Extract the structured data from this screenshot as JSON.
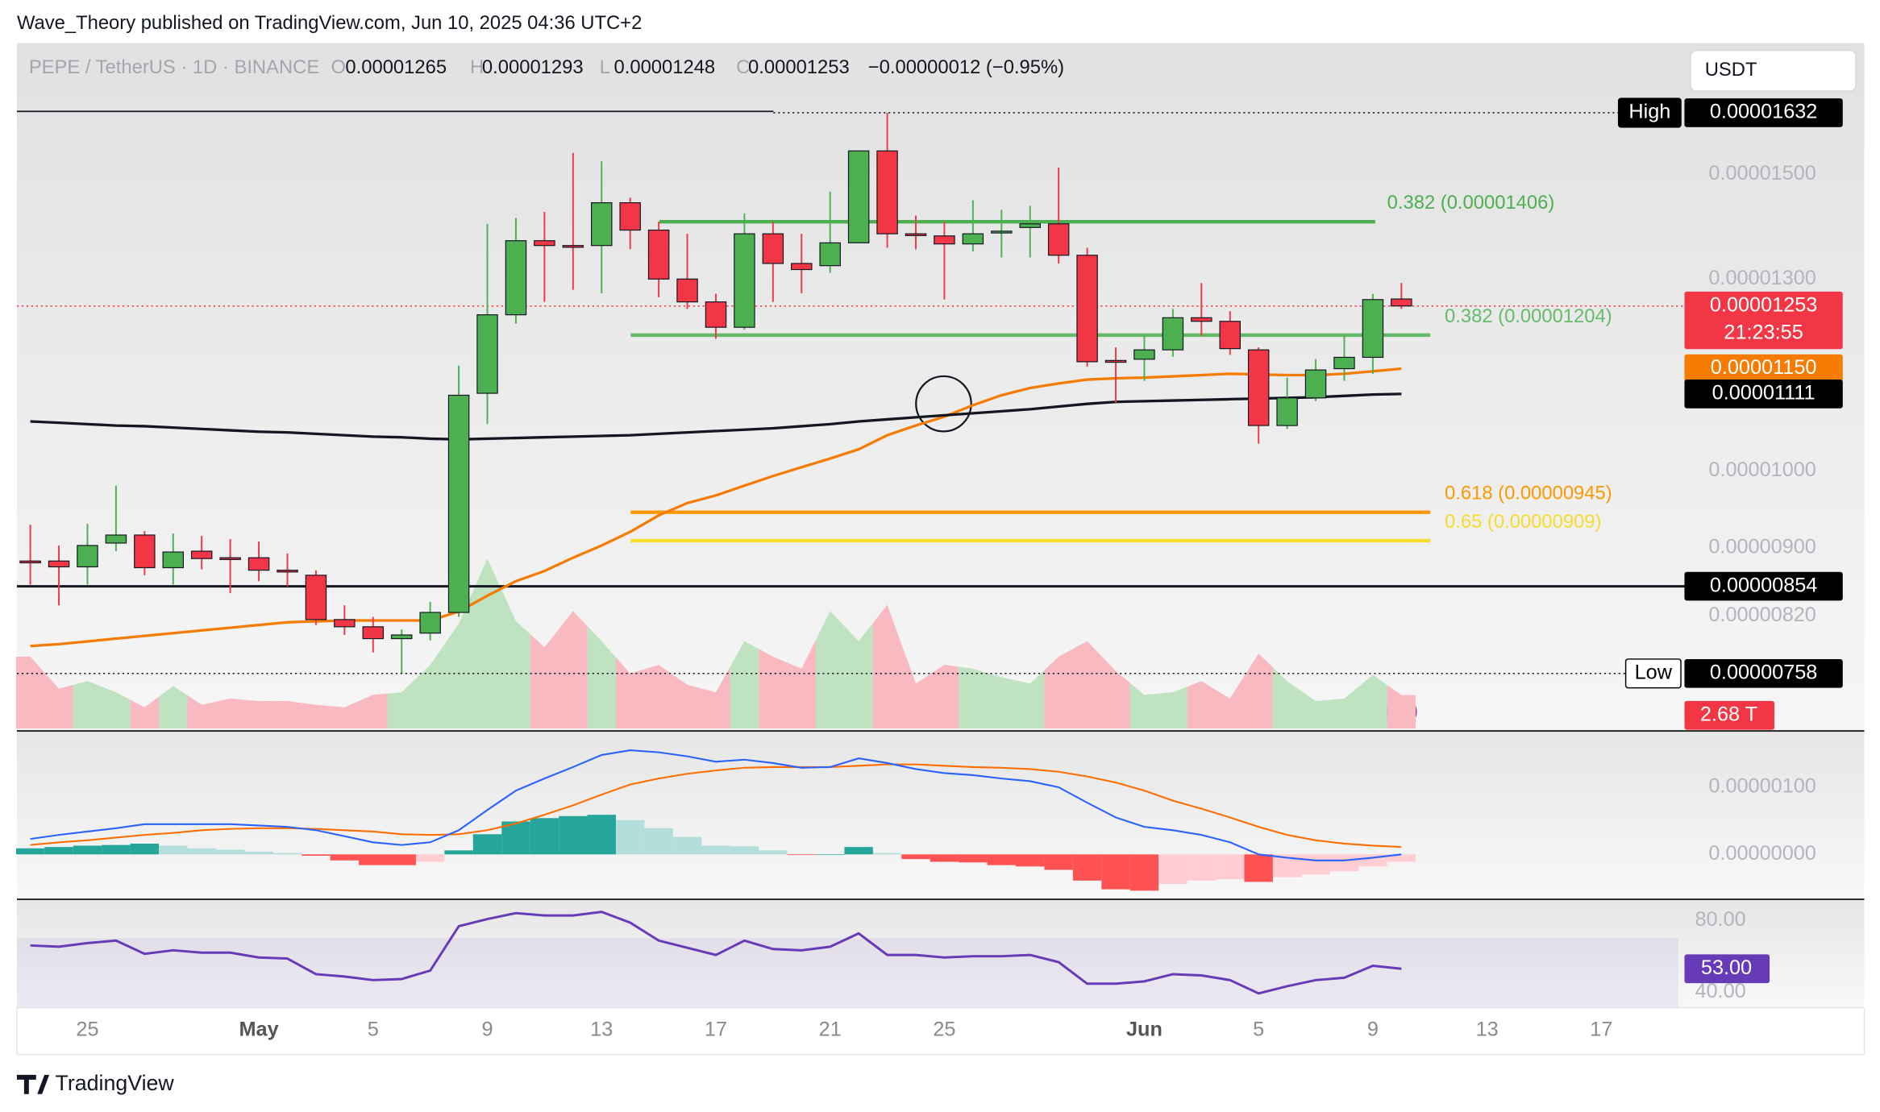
{
  "header": {
    "attribution": "Wave_Theory published on TradingView.com, Jun 10, 2025 04:36 UTC+2",
    "symbol": "PEPE / TetherUS · 1D · BINANCE",
    "ohlc": [
      {
        "key": "O",
        "value": "0.00001265"
      },
      {
        "key": "H",
        "value": "0.00001293"
      },
      {
        "key": "L",
        "value": "0.00001248"
      },
      {
        "key": "C",
        "value": "0.00001253"
      }
    ],
    "change": "−0.00000012 (−0.95%)",
    "currency": "USDT"
  },
  "footer": {
    "brand": "TradingView"
  },
  "chart_data": [
    {
      "type": "candlestick",
      "log_scale": true,
      "xlim": [
        -0.47,
        57.7
      ],
      "xticks": [
        {
          "value": 2,
          "label": "25"
        },
        {
          "value": 8,
          "label": "May"
        },
        {
          "value": 12,
          "label": "5"
        },
        {
          "value": 16,
          "label": "9"
        },
        {
          "value": 20,
          "label": "13"
        },
        {
          "value": 24,
          "label": "17"
        },
        {
          "value": 28,
          "label": "21"
        },
        {
          "value": 32,
          "label": "25"
        },
        {
          "value": 39,
          "label": "Jun"
        },
        {
          "value": 43,
          "label": "5"
        },
        {
          "value": 47,
          "label": "9"
        },
        {
          "value": 51,
          "label": "13"
        },
        {
          "value": 55,
          "label": "17"
        }
      ],
      "ylim": [
        7.03e-06,
        1.795e-05
      ],
      "yticks": [
        {
          "value": 1.5e-05,
          "label": "0.00001500"
        },
        {
          "value": 1.3e-05,
          "label": "0.00001300"
        },
        {
          "value": 1e-05,
          "label": "0.00001000"
        },
        {
          "value": 9e-06,
          "label": "0.00000900"
        },
        {
          "value": 8.2e-06,
          "label": "0.00000820"
        }
      ],
      "up_color": "#4caf50",
      "down_color": "#f23645",
      "open": [
        8.84e-06,
        8.84e-06,
        8.77e-06,
        9.06e-06,
        9.16e-06,
        8.76e-06,
        8.96e-06,
        8.88e-06,
        8.88e-06,
        8.73e-06,
        8.67e-06,
        8.16e-06,
        8.08e-06,
        7.95e-06,
        8.01e-06,
        8.24e-06,
        1.112e-05,
        1.238e-05,
        1.37e-05,
        1.361e-05,
        1.361e-05,
        1.443e-05,
        1.39e-05,
        1.3e-05,
        1.26e-05,
        1.217e-05,
        1.383e-05,
        1.328e-05,
        1.324e-05,
        1.366e-05,
        1.549e-05,
        1.383e-05,
        1.379e-05,
        1.364e-05,
        1.386e-05,
        1.395e-05,
        1.402e-05,
        1.343e-05,
        1.163e-05,
        1.165e-05,
        1.18e-05,
        1.233e-05,
        1.227e-05,
        1.18e-05,
        1.064e-05,
        1.105e-05,
        1.15e-05,
        1.168e-05,
        1.265e-05
      ],
      "high": [
        9.29e-06,
        9.03e-06,
        9.3e-06,
        9.8e-06,
        9.21e-06,
        9.18e-06,
        9.15e-06,
        9.11e-06,
        9.08e-06,
        8.93e-06,
        8.73e-06,
        8.32e-06,
        8.19e-06,
        8.05e-06,
        8.36e-06,
        1.155e-05,
        1.402e-05,
        1.413e-05,
        1.425e-05,
        1.545e-05,
        1.527e-05,
        1.453e-05,
        1.406e-05,
        1.383e-05,
        1.274e-05,
        1.422e-05,
        1.406e-05,
        1.383e-05,
        1.465e-05,
        1.549e-05,
        1.632e-05,
        1.418e-05,
        1.406e-05,
        1.448e-05,
        1.429e-05,
        1.437e-05,
        1.514e-05,
        1.357e-05,
        1.184e-05,
        1.203e-05,
        1.248e-05,
        1.293e-05,
        1.244e-05,
        1.184e-05,
        1.136e-05,
        1.165e-05,
        1.203e-05,
        1.274e-05,
        1.293e-05
      ],
      "low": [
        8.56e-06,
        8.32e-06,
        8.56e-06,
        8.96e-06,
        8.67e-06,
        8.56e-06,
        8.74e-06,
        8.46e-06,
        8.6e-06,
        8.54e-06,
        8.1e-06,
        7.99e-06,
        7.8e-06,
        7.58e-06,
        7.93e-06,
        8.19e-06,
        1.066e-05,
        1.223e-05,
        1.26e-05,
        1.281e-05,
        1.275e-05,
        1.354e-05,
        1.268e-05,
        1.248e-05,
        1.198e-05,
        1.213e-05,
        1.26e-05,
        1.275e-05,
        1.311e-05,
        1.366e-05,
        1.357e-05,
        1.354e-05,
        1.264e-05,
        1.35e-05,
        1.339e-05,
        1.339e-05,
        1.328e-05,
        1.153e-05,
        1.098e-05,
        1.131e-05,
        1.169e-05,
        1.203e-05,
        1.172e-05,
        1.038e-05,
        1.059e-05,
        1.1e-05,
        1.131e-05,
        1.142e-05,
        1.248e-05
      ],
      "close": [
        8.83e-06,
        8.77e-06,
        9.03e-06,
        9.16e-06,
        8.76e-06,
        8.95e-06,
        8.87e-06,
        8.87e-06,
        8.73e-06,
        8.71e-06,
        8.16e-06,
        8.08e-06,
        7.95e-06,
        7.99e-06,
        8.24e-06,
        1.109e-05,
        1.238e-05,
        1.37e-05,
        1.361e-05,
        1.36e-05,
        1.443e-05,
        1.39e-05,
        1.3e-05,
        1.26e-05,
        1.217e-05,
        1.383e-05,
        1.328e-05,
        1.317e-05,
        1.366e-05,
        1.549e-05,
        1.383e-05,
        1.38e-05,
        1.364e-05,
        1.383e-05,
        1.388e-05,
        1.402e-05,
        1.343e-05,
        1.161e-05,
        1.162e-05,
        1.18e-05,
        1.233e-05,
        1.227e-05,
        1.182e-05,
        1.064e-05,
        1.105e-05,
        1.148e-05,
        1.168e-05,
        1.264e-05,
        1.253e-05
      ],
      "moving_averages": [
        {
          "color": "#f57c00",
          "values": [
            7.87e-06,
            7.89e-06,
            7.92e-06,
            7.95e-06,
            7.98e-06,
            8.01e-06,
            8.04e-06,
            8.07e-06,
            8.1e-06,
            8.13e-06,
            8.14e-06,
            8.15e-06,
            8.15e-06,
            8.15e-06,
            8.15e-06,
            8.25e-06,
            8.43e-06,
            8.6e-06,
            8.72e-06,
            8.88e-06,
            9.03e-06,
            9.2e-06,
            9.41e-06,
            9.57e-06,
            9.67e-06,
            9.8e-06,
            9.93e-06,
            1.005e-05,
            1.017e-05,
            1.03e-05,
            1.05e-05,
            1.064e-05,
            1.077e-05,
            1.094e-05,
            1.109e-05,
            1.12e-05,
            1.127e-05,
            1.133e-05,
            1.135e-05,
            1.136e-05,
            1.138e-05,
            1.14e-05,
            1.142e-05,
            1.141e-05,
            1.14e-05,
            1.14e-05,
            1.142e-05,
            1.146e-05,
            1.15e-05
          ]
        },
        {
          "color": "#131722",
          "values": [
            1.07e-05,
            1.068e-05,
            1.066e-05,
            1.064e-05,
            1.063e-05,
            1.061e-05,
            1.059e-05,
            1.057e-05,
            1.055e-05,
            1.054e-05,
            1.052e-05,
            1.05e-05,
            1.048e-05,
            1.047e-05,
            1.045e-05,
            1.044e-05,
            1.045e-05,
            1.046e-05,
            1.047e-05,
            1.048e-05,
            1.049e-05,
            1.05e-05,
            1.052e-05,
            1.054e-05,
            1.056e-05,
            1.058e-05,
            1.06e-05,
            1.063e-05,
            1.066e-05,
            1.07e-05,
            1.073e-05,
            1.076e-05,
            1.079e-05,
            1.082e-05,
            1.085e-05,
            1.088e-05,
            1.092e-05,
            1.096e-05,
            1.099e-05,
            1.1e-05,
            1.101e-05,
            1.102e-05,
            1.103e-05,
            1.104e-05,
            1.105e-05,
            1.106e-05,
            1.108e-05,
            1.11e-05,
            1.111e-05
          ]
        }
      ],
      "levels": [
        {
          "label": "0.382 (0.00001406)",
          "value": 1.406e-05,
          "color": "#4caf50"
        },
        {
          "label": "0.382 (0.00001204)",
          "value": 1.204e-05,
          "color": "#66bb6a"
        },
        {
          "label": "0.618 (0.00000945)",
          "value": 9.45e-06,
          "color": "#ff9800"
        },
        {
          "label": "0.65 (0.00000909)",
          "value": 9.09e-06,
          "color": "#f5dc2e"
        }
      ],
      "horizontal_lines": [
        {
          "value": 8.54e-06,
          "color": "#131722"
        },
        {
          "value": 1.635e-05,
          "color": "#131722"
        }
      ],
      "high_marker": {
        "name": "High",
        "value": 1.632e-05,
        "label": "0.00001632"
      },
      "low_marker": {
        "name": "Low",
        "value": 7.58e-06,
        "label": "0.00000758"
      },
      "price_tags": [
        {
          "value": 1.253e-05,
          "label": "0.00001253",
          "countdown": "21:23:55",
          "color": "#f23645"
        },
        {
          "value": 1.15e-05,
          "label": "0.00001150",
          "color": "#f57c00"
        },
        {
          "value": 1.111e-05,
          "label": "0.00001111",
          "color": "#000000"
        },
        {
          "value": 8.54e-06,
          "label": "0.00000854",
          "color": "#000000"
        }
      ],
      "volume": {
        "ylim": [
          0,
          14
        ],
        "up_color": "#bfe3c0",
        "down_color": "#f8b9c0",
        "last_label": "2.68 T",
        "values": [
          5.75,
          3.2,
          3.8,
          2.9,
          1.7,
          3.4,
          1.9,
          2.4,
          2.2,
          2.2,
          1.9,
          1.7,
          2.7,
          2.9,
          5.1,
          8.4,
          13.6,
          8.6,
          6.5,
          9.4,
          7.0,
          4.4,
          5.1,
          3.5,
          2.9,
          7.0,
          5.75,
          4.8,
          9.4,
          7.0,
          9.9,
          3.6,
          5.1,
          4.8,
          4.1,
          3.6,
          5.75,
          7.0,
          4.6,
          2.7,
          2.9,
          3.8,
          2.4,
          6.0,
          3.8,
          2.2,
          2.4,
          4.3,
          2.68
        ]
      }
    },
    {
      "type": "macd",
      "ylim": [
        -6.6e-07,
        1.82e-06
      ],
      "yticks": [
        {
          "value": 1e-06,
          "label": "0.00000100"
        },
        {
          "value": 0,
          "label": "0.00000000"
        }
      ],
      "macd": {
        "color": "#2962ff",
        "values": [
          2.3e-07,
          2.9e-07,
          3.4e-07,
          3.9e-07,
          4.5e-07,
          4.5e-07,
          4.5e-07,
          4.5e-07,
          4.3e-07,
          4.1e-07,
          3.6e-07,
          2.7e-07,
          1.8e-07,
          1.4e-07,
          1.8e-07,
          3.6e-07,
          6.6e-07,
          9.5e-07,
          1.13e-06,
          1.3e-06,
          1.48e-06,
          1.55e-06,
          1.52e-06,
          1.46e-06,
          1.38e-06,
          1.41e-06,
          1.36e-06,
          1.29e-06,
          1.3e-06,
          1.43e-06,
          1.36e-06,
          1.27e-06,
          1.21e-06,
          1.18e-06,
          1.13e-06,
          1.09e-06,
          1e-06,
          7.7e-07,
          5.5e-07,
          4.1e-07,
          3.6e-07,
          2.9e-07,
          1.8e-07,
          0,
          -5e-08,
          -9e-08,
          -9e-08,
          -5e-08,
          0
        ]
      },
      "signal": {
        "color": "#ff6d00",
        "values": [
          1.4e-07,
          1.8e-07,
          2.1e-07,
          2.5e-07,
          2.9e-07,
          3.2e-07,
          3.6e-07,
          3.8e-07,
          3.9e-07,
          3.9e-07,
          3.8e-07,
          3.6e-07,
          3.4e-07,
          3e-07,
          2.9e-07,
          3e-07,
          3.6e-07,
          4.6e-07,
          5.9e-07,
          7.3e-07,
          8.9e-07,
          1.04e-06,
          1.13e-06,
          1.2e-06,
          1.25e-06,
          1.29e-06,
          1.3e-06,
          1.3e-06,
          1.3e-06,
          1.32e-06,
          1.34e-06,
          1.34e-06,
          1.32e-06,
          1.3e-06,
          1.29e-06,
          1.27e-06,
          1.23e-06,
          1.16e-06,
          1.07e-06,
          9.5e-07,
          8e-07,
          6.8e-07,
          5.5e-07,
          4.1e-07,
          2.9e-07,
          2.1e-07,
          1.6e-07,
          1.3e-07,
          1.1e-07
        ]
      },
      "histogram": {
        "colors": [
          "#26a69a",
          "#b2dfdb",
          "#ff5252",
          "#ffcdd2"
        ],
        "values": [
          9e-08,
          1.1e-07,
          1.3e-07,
          1.4e-07,
          1.6e-07,
          1.3e-07,
          9e-08,
          7e-08,
          4e-08,
          2e-08,
          -2e-08,
          -9e-08,
          -1.6e-07,
          -1.6e-07,
          -1.1e-07,
          6e-08,
          3e-07,
          4.9e-07,
          5.4e-07,
          5.7e-07,
          5.9e-07,
          5.1e-07,
          3.9e-07,
          2.6e-07,
          1.3e-07,
          1.2e-07,
          6e-08,
          -1e-08,
          0,
          1.1e-07,
          2e-08,
          -7e-08,
          -1.1e-07,
          -1.2e-07,
          -1.6e-07,
          -1.8e-07,
          -2.3e-07,
          -3.9e-07,
          -5.2e-07,
          -5.4e-07,
          -4.4e-07,
          -3.9e-07,
          -3.7e-07,
          -4.1e-07,
          -3.4e-07,
          -3e-07,
          -2.5e-07,
          -1.8e-07,
          -1.1e-07
        ]
      }
    },
    {
      "type": "rsi",
      "ylim": [
        31.3,
        90.7
      ],
      "yticks": [
        {
          "value": 80,
          "label": "80.00"
        },
        {
          "value": 40,
          "label": "40.00"
        }
      ],
      "band": [
        30,
        70
      ],
      "color": "#673ab7",
      "values": [
        66.0,
        65.3,
        67.3,
        68.7,
        61.3,
        63.3,
        62.0,
        62.0,
        59.3,
        58.7,
        50.0,
        48.7,
        46.7,
        47.3,
        52.0,
        76.7,
        80.7,
        84.0,
        82.7,
        82.7,
        84.7,
        78.7,
        68.7,
        64.7,
        60.7,
        68.7,
        64.0,
        63.3,
        65.3,
        72.7,
        60.7,
        60.7,
        59.3,
        60.0,
        60.0,
        60.7,
        56.7,
        44.7,
        44.7,
        46.0,
        50.0,
        49.3,
        46.7,
        39.3,
        43.3,
        46.7,
        48.0,
        54.7,
        53.0
      ],
      "last_label": "53.00"
    }
  ]
}
